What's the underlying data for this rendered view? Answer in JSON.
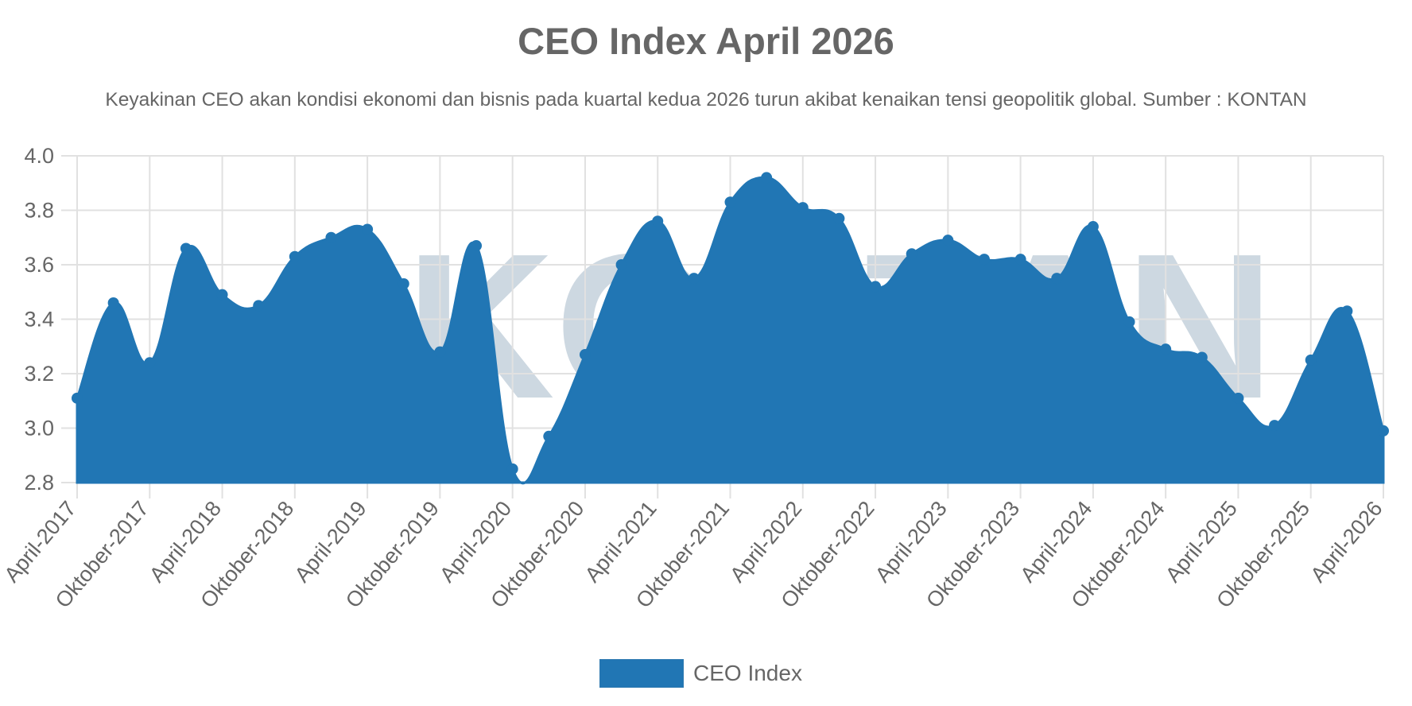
{
  "chart_data": {
    "type": "area",
    "title": "CEO Index April 2026",
    "subtitle": "Keyakinan CEO akan kondisi ekonomi dan bisnis pada kuartal kedua 2026 turun akibat kenaikan tensi geopolitik global. Sumber : KONTAN",
    "xlabel": "",
    "ylabel": "",
    "ylim": [
      2.8,
      4.0
    ],
    "yticks": [
      "4.0",
      "3.8",
      "3.6",
      "3.4",
      "3.2",
      "3.0",
      "2.8"
    ],
    "xtick_labels": [
      "April-2017",
      "Oktober-2017",
      "April-2018",
      "Oktober-2018",
      "April-2019",
      "Oktober-2019",
      "April-2020",
      "Oktober-2020",
      "April-2021",
      "Oktober-2021",
      "April-2022",
      "Oktober-2022",
      "April-2023",
      "Oktober-2023",
      "April-2024",
      "Oktober-2024",
      "April-2025",
      "Oktober-2025",
      "April-2026"
    ],
    "x": [
      "Apr-2017",
      "Jul-2017",
      "Okt-2017",
      "Jan-2018",
      "Apr-2018",
      "Jul-2018",
      "Okt-2018",
      "Jan-2019",
      "Apr-2019",
      "Jul-2019",
      "Okt-2019",
      "Jan-2020",
      "Apr-2020",
      "Jul-2020",
      "Okt-2020",
      "Jan-2021",
      "Apr-2021",
      "Jul-2021",
      "Okt-2021",
      "Jan-2022",
      "Apr-2022",
      "Jul-2022",
      "Okt-2022",
      "Jan-2023",
      "Apr-2023",
      "Jul-2023",
      "Okt-2023",
      "Jan-2024",
      "Apr-2024",
      "Jul-2024",
      "Okt-2024",
      "Jan-2025",
      "Apr-2025",
      "Jul-2025",
      "Okt-2025",
      "Jan-2026",
      "Apr-2026"
    ],
    "series": [
      {
        "name": "CEO Index",
        "color": "#2176b4",
        "values": [
          3.11,
          3.46,
          3.24,
          3.66,
          3.49,
          3.45,
          3.63,
          3.7,
          3.73,
          3.53,
          3.28,
          3.67,
          2.85,
          2.97,
          3.27,
          3.6,
          3.76,
          3.55,
          3.83,
          3.92,
          3.81,
          3.77,
          3.52,
          3.64,
          3.69,
          3.62,
          3.62,
          3.55,
          3.74,
          3.39,
          3.29,
          3.26,
          3.11,
          3.01,
          3.25,
          3.43,
          2.99
        ]
      }
    ],
    "grid": true,
    "legend_position": "bottom",
    "watermark": "KONTAN"
  },
  "legend": {
    "label": "CEO Index",
    "color": "#2176b4"
  },
  "colors": {
    "fill": "#2176b4",
    "grid": "#e1e1e1",
    "text": "#666666",
    "watermark": "#cdd8e1"
  }
}
